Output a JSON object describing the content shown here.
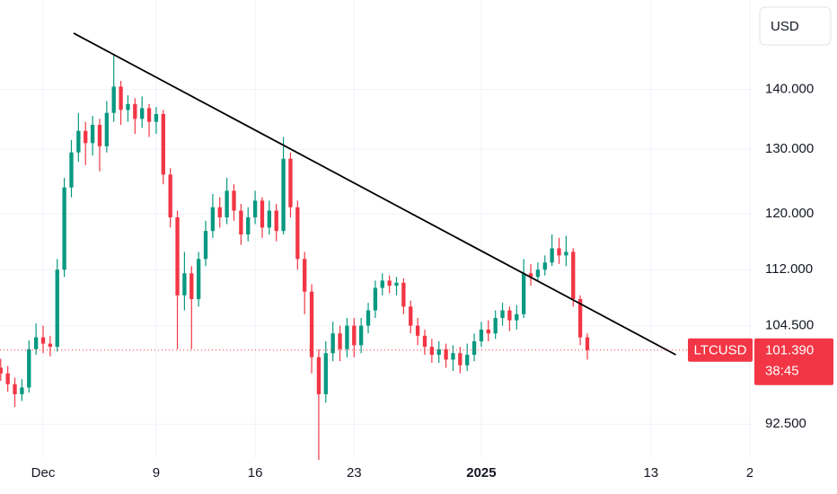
{
  "chart_data": {
    "type": "candlestick",
    "currency": "USD",
    "symbol": "LTCUSD",
    "last_price": {
      "value": 101.39,
      "label": "101.390"
    },
    "countdown": "38:45",
    "log_scale": true,
    "grid": true,
    "up_color": "#089981",
    "down_color": "#f23645",
    "ylim": [
      88.7,
      156.4
    ],
    "yticks": [
      {
        "value": 92.5,
        "label": "92.500"
      },
      {
        "value": 104.5,
        "label": "104.500"
      },
      {
        "value": 112,
        "label": "112.000"
      },
      {
        "value": 120,
        "label": "120.000"
      },
      {
        "value": 130,
        "label": "130.000"
      },
      {
        "value": 140,
        "label": "140.000"
      }
    ],
    "xlim": [
      -3.05,
      50
    ],
    "xticks": [
      {
        "value": 0,
        "label": "Dec"
      },
      {
        "value": 8,
        "label": "9"
      },
      {
        "value": 15,
        "label": "16"
      },
      {
        "value": 22,
        "label": "23"
      },
      {
        "value": 31,
        "label": "2025"
      },
      {
        "value": 43,
        "label": "13"
      },
      {
        "value": 50,
        "label": "2"
      }
    ],
    "trend_line": {
      "x": [
        2.16,
        44.76
      ],
      "y": [
        150.1,
        100.8
      ],
      "color": "#000000"
    },
    "x": [
      -3,
      -2.5,
      -2,
      -1.5,
      -1,
      -0.5,
      0,
      0.5,
      1,
      1.5,
      2,
      2.5,
      3,
      3.5,
      4,
      4.5,
      5,
      5.5,
      6,
      6.5,
      7,
      7.5,
      8,
      8.5,
      9,
      9.5,
      10,
      10.5,
      11,
      11.5,
      12,
      12.5,
      13,
      13.5,
      14,
      14.5,
      15,
      15.5,
      16,
      16.5,
      17,
      17.5,
      18,
      18.5,
      19,
      19.5,
      20,
      20.5,
      21,
      21.5,
      22,
      22.5,
      23,
      23.5,
      24,
      24.5,
      25,
      25.5,
      26,
      26.5,
      27,
      27.5,
      28,
      28.5,
      29,
      29.5,
      30,
      30.5,
      31,
      31.5,
      32,
      32.5,
      33,
      33.5,
      34,
      34.5,
      35,
      35.5,
      36,
      36.5,
      37,
      37.5,
      38,
      38.5
    ],
    "open": [
      99.2,
      98.5,
      97.2,
      96.0,
      96.8,
      101.5,
      103.0,
      102.2,
      101.8,
      112.0,
      124.0,
      129.5,
      133.0,
      131.0,
      134.0,
      130.5,
      136.0,
      140.5,
      136.5,
      137.5,
      135.0,
      136.8,
      134.5,
      135.8,
      126.0,
      119.5,
      108.5,
      111.5,
      108.0,
      113.5,
      117.5,
      121.0,
      119.5,
      123.5,
      120.5,
      117.0,
      119.5,
      122.0,
      118.0,
      120.5,
      117.5,
      128.5,
      121.0,
      113.5,
      109.0,
      100.5,
      96.0,
      101.0,
      103.5,
      101.5,
      104.5,
      102.0,
      104.5,
      106.5,
      109.5,
      110.5,
      109.8,
      110.2,
      107.0,
      104.5,
      103.2,
      101.8,
      100.8,
      101.5,
      100.2,
      101.0,
      99.5,
      100.8,
      102.5,
      104.0,
      103.5,
      105.5,
      106.5,
      105.2,
      106.0,
      111.5,
      111.0,
      112.0,
      113.0,
      115.0,
      114.0,
      114.5,
      108.0,
      103.0
    ],
    "high": [
      100.3,
      99.4,
      98.0,
      97.8,
      102.6,
      104.8,
      104.5,
      103.2,
      113.5,
      125.5,
      131.5,
      136.0,
      134.5,
      135.5,
      135.0,
      138.0,
      146.3,
      141.5,
      139.0,
      138.5,
      138.8,
      137.5,
      137.0,
      136.5,
      127.0,
      120.5,
      114.5,
      112.5,
      114.5,
      119.0,
      123.0,
      122.5,
      125.5,
      124.5,
      121.5,
      121.0,
      123.5,
      122.5,
      122.0,
      121.5,
      132.0,
      129.5,
      122.0,
      114.5,
      110.0,
      101.5,
      102.5,
      105.0,
      104.5,
      105.5,
      105.5,
      105.5,
      107.5,
      110.5,
      111.5,
      111.2,
      111.0,
      110.8,
      107.8,
      105.5,
      104.0,
      102.8,
      102.5,
      102.2,
      102.0,
      101.8,
      102.2,
      103.5,
      105.0,
      105.2,
      106.5,
      107.5,
      107.0,
      107.2,
      113.5,
      112.8,
      113.0,
      114.0,
      117.0,
      116.5,
      116.8,
      115.0,
      108.5,
      103.5
    ],
    "low": [
      97.6,
      96.3,
      94.5,
      95.2,
      96.2,
      100.8,
      101.0,
      100.6,
      101.2,
      111.0,
      122.5,
      128.0,
      127.5,
      129.0,
      126.5,
      129.5,
      134.5,
      134.0,
      134.5,
      132.5,
      133.5,
      132.0,
      132.5,
      124.5,
      118.0,
      101.5,
      106.5,
      101.5,
      107.0,
      112.5,
      116.5,
      118.0,
      118.5,
      119.0,
      115.5,
      116.0,
      118.5,
      116.5,
      117.0,
      116.0,
      117.0,
      119.5,
      112.0,
      106.0,
      98.5,
      88.5,
      95.0,
      100.0,
      100.0,
      100.5,
      100.5,
      101.0,
      103.5,
      105.5,
      108.5,
      108.8,
      108.5,
      106.0,
      103.5,
      102.0,
      100.8,
      99.8,
      99.8,
      99.2,
      98.8,
      98.5,
      98.8,
      100.0,
      101.8,
      102.5,
      102.8,
      104.5,
      103.8,
      104.0,
      105.5,
      109.8,
      110.5,
      111.2,
      112.5,
      112.8,
      112.5,
      107.0,
      102.0,
      100.2
    ],
    "close": [
      98.5,
      97.2,
      96.0,
      96.8,
      101.5,
      103.0,
      102.2,
      101.8,
      112.0,
      124.0,
      129.5,
      133.0,
      131.0,
      134.0,
      130.5,
      136.0,
      140.5,
      136.5,
      137.5,
      135.0,
      136.8,
      134.5,
      135.8,
      126.0,
      119.5,
      108.5,
      111.5,
      108.0,
      113.5,
      117.5,
      121.0,
      119.5,
      123.5,
      120.5,
      117.0,
      119.5,
      122.0,
      118.0,
      120.5,
      117.5,
      128.5,
      121.0,
      113.5,
      109.0,
      100.5,
      96.0,
      101.0,
      103.5,
      101.5,
      104.5,
      102.0,
      104.5,
      106.5,
      109.5,
      110.5,
      109.8,
      110.2,
      107.0,
      104.5,
      103.2,
      101.8,
      100.8,
      101.5,
      100.2,
      101.0,
      99.5,
      100.8,
      102.5,
      104.0,
      103.5,
      105.5,
      106.5,
      105.2,
      106.0,
      111.5,
      111.0,
      112.0,
      113.0,
      115.0,
      114.0,
      114.5,
      108.0,
      103.0,
      101.39
    ]
  }
}
